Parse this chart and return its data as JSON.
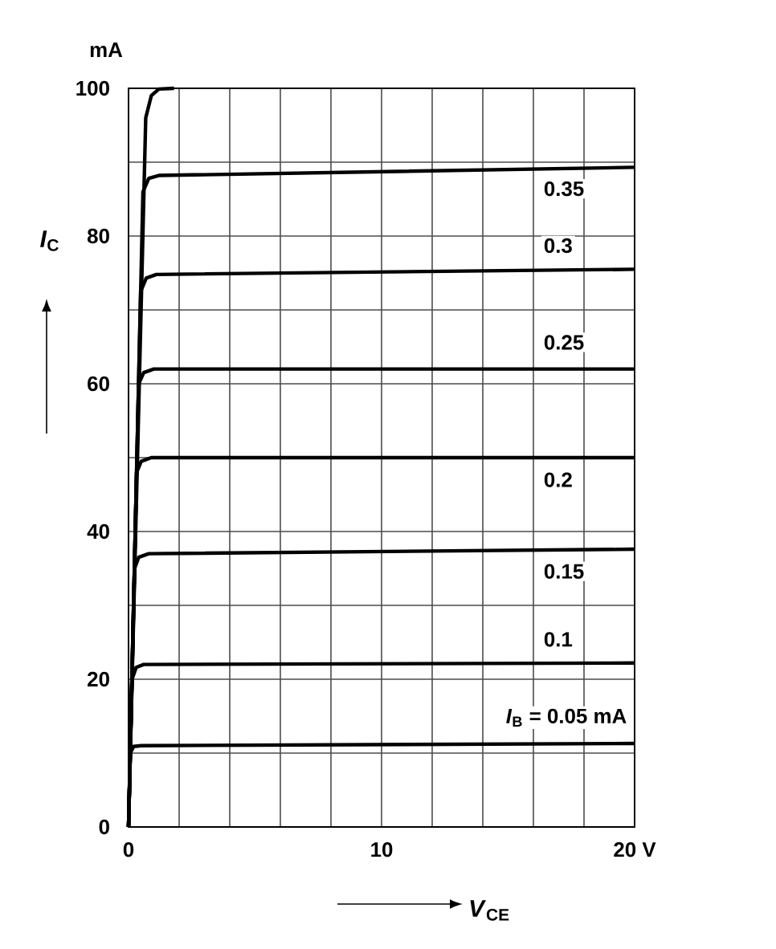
{
  "chart_data": {
    "type": "line",
    "xlabel": "*V*$_{CE}$",
    "ylabel": "*I*$_{C}$",
    "annotations": [
      "mA"
    ],
    "xlim": [
      0,
      20
    ],
    "ylim": [
      0,
      100
    ],
    "xticks": [
      0,
      {
        "value": 2,
        "label": null
      },
      {
        "value": 4,
        "label": null
      },
      {
        "value": 6,
        "label": null
      },
      {
        "value": 8,
        "label": null
      },
      10,
      {
        "value": 12,
        "label": null
      },
      {
        "value": 14,
        "label": null
      },
      {
        "value": 16,
        "label": null
      },
      {
        "value": 18,
        "label": null
      },
      {
        "value": 20,
        "label": "20 V"
      }
    ],
    "yticks": [
      0,
      {
        "value": 10,
        "label": null
      },
      20,
      {
        "value": 30,
        "label": null
      },
      40,
      {
        "value": 50,
        "label": null
      },
      60,
      {
        "value": 70,
        "label": null
      },
      80,
      {
        "value": 90,
        "label": null
      },
      100
    ],
    "grid": true,
    "series": [
      {
        "name": "*I*$_{B}$ = 0.05 mA",
        "color": "#000000",
        "x": [
          0,
          0.07,
          0.2,
          0.5,
          20
        ],
        "values": [
          0,
          10,
          10.9,
          11,
          11.3
        ]
      },
      {
        "name": "0.1",
        "color": "#000000",
        "x": [
          0,
          0.14,
          0.3,
          0.6,
          20
        ],
        "values": [
          0,
          20,
          21.6,
          22,
          22.2
        ]
      },
      {
        "name": "0.15",
        "color": "#000000",
        "x": [
          0,
          0.24,
          0.4,
          0.8,
          20
        ],
        "values": [
          0,
          35,
          36.5,
          37,
          37.6
        ]
      },
      {
        "name": "0.2",
        "color": "#000000",
        "x": [
          0,
          0.32,
          0.5,
          0.9,
          20
        ],
        "values": [
          0,
          48,
          49.5,
          50,
          50
        ]
      },
      {
        "name": "0.25",
        "color": "#000000",
        "x": [
          0,
          0.4,
          0.6,
          1,
          20
        ],
        "values": [
          0,
          60,
          61.5,
          62,
          62
        ]
      },
      {
        "name": "0.3",
        "color": "#000000",
        "x": [
          0,
          0.48,
          0.7,
          1.1,
          20
        ],
        "values": [
          0,
          72.5,
          74.3,
          74.8,
          75.5
        ]
      },
      {
        "name": "0.35",
        "color": "#000000",
        "x": [
          0,
          0.57,
          0.8,
          1.2,
          20
        ],
        "values": [
          0,
          86,
          87.8,
          88.2,
          89.3
        ]
      },
      {
        "color": "#000000",
        "x": [
          0,
          0.68,
          0.9,
          1.2,
          1.8
        ],
        "values": [
          0,
          96,
          99,
          99.9,
          100
        ]
      }
    ]
  }
}
